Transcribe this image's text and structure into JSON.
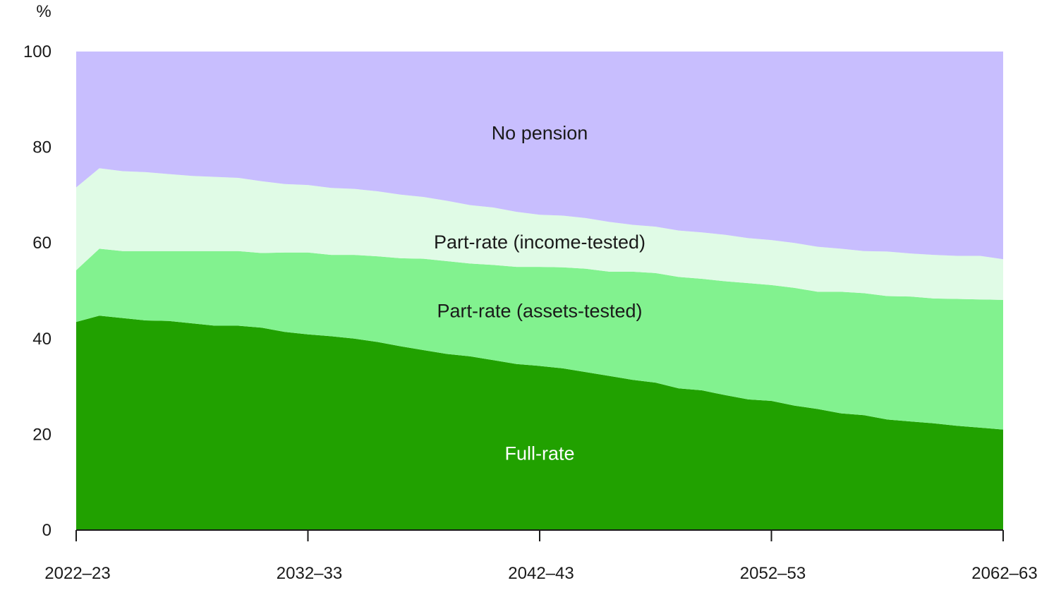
{
  "chart_data": {
    "type": "area",
    "stacked": true,
    "ylabel": "%",
    "ylim": [
      0,
      100
    ],
    "yticks": [
      0,
      20,
      40,
      60,
      80,
      100
    ],
    "x_start_year": 2022,
    "x_end_year": 2062,
    "xticks": [
      "2022–23",
      "2032–33",
      "2042–43",
      "2052–53",
      "2062–63"
    ],
    "grid": false,
    "series": [
      {
        "name": "Full-rate",
        "color": "#21a100",
        "label_color": "#ffffff",
        "values": [
          43.5,
          44.8,
          44.3,
          43.8,
          43.7,
          43.2,
          42.7,
          42.7,
          42.3,
          41.4,
          40.9,
          40.5,
          40.0,
          39.3,
          38.4,
          37.6,
          36.8,
          36.3,
          35.5,
          34.7,
          34.3,
          33.8,
          33.0,
          32.2,
          31.4,
          30.8,
          29.6,
          29.2,
          28.2,
          27.3,
          27.0,
          26.0,
          25.3,
          24.4,
          24.0,
          23.1,
          22.7,
          22.3,
          21.8,
          21.4,
          21.0
        ]
      },
      {
        "name": "Part-rate (assets-tested)",
        "color": "#82f28f",
        "label_color": "#1a1a1a",
        "values": [
          10.8,
          14.0,
          14.0,
          14.5,
          14.6,
          15.1,
          15.6,
          15.6,
          15.6,
          16.6,
          17.1,
          17.0,
          17.5,
          17.9,
          18.4,
          19.1,
          19.4,
          19.4,
          19.9,
          20.3,
          20.7,
          21.1,
          21.6,
          21.8,
          22.6,
          22.9,
          23.3,
          23.3,
          23.8,
          24.3,
          24.2,
          24.6,
          24.5,
          25.4,
          25.5,
          25.8,
          26.1,
          26.1,
          26.5,
          26.8,
          27.1
        ]
      },
      {
        "name": "Part-rate (income-tested)",
        "color": "#e0fbe6",
        "label_color": "#1a1a1a",
        "values": [
          17.3,
          16.8,
          16.7,
          16.5,
          16.1,
          15.7,
          15.5,
          15.3,
          15.0,
          14.3,
          14.1,
          14.0,
          13.8,
          13.6,
          13.3,
          12.9,
          12.6,
          12.2,
          12.0,
          11.5,
          10.9,
          10.8,
          10.6,
          10.4,
          9.8,
          9.7,
          9.7,
          9.7,
          9.7,
          9.4,
          9.4,
          9.4,
          9.4,
          9.0,
          8.8,
          9.3,
          9.0,
          9.1,
          9.0,
          9.1,
          8.5
        ]
      },
      {
        "name": "No pension",
        "color": "#c8befe",
        "label_color": "#1a1a1a",
        "values": [
          28.4,
          24.4,
          25.0,
          25.2,
          25.6,
          26.0,
          26.2,
          26.4,
          27.1,
          27.7,
          27.9,
          28.5,
          28.7,
          29.2,
          29.9,
          30.4,
          31.2,
          32.1,
          32.6,
          33.5,
          34.1,
          34.3,
          34.8,
          35.6,
          36.2,
          36.6,
          37.4,
          37.8,
          38.3,
          39.0,
          39.4,
          40.0,
          40.8,
          41.2,
          41.7,
          41.8,
          42.2,
          42.5,
          42.7,
          42.7,
          43.4
        ]
      }
    ],
    "annotations": [
      {
        "series": "No pension",
        "x_year": 2042,
        "y": 83
      },
      {
        "series": "Part-rate (income-tested)",
        "x_year": 2042,
        "y": 60.2
      },
      {
        "series": "Part-rate (assets-tested)",
        "x_year": 2042,
        "y": 45.8
      },
      {
        "series": "Full-rate",
        "x_year": 2042,
        "y": 16
      }
    ]
  }
}
